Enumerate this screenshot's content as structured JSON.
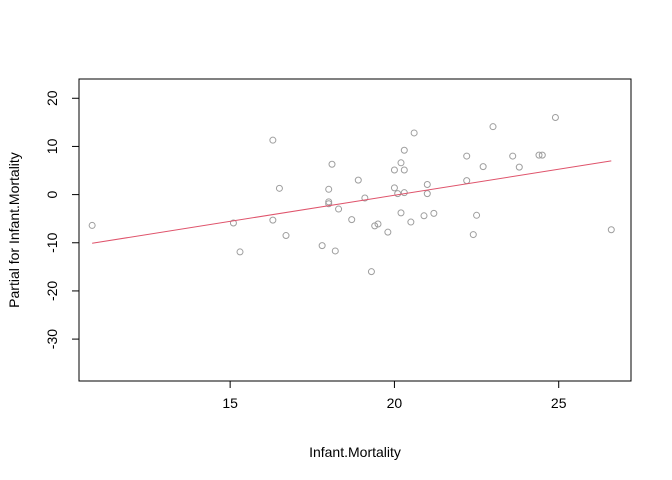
{
  "chart_data": {
    "type": "scatter",
    "title": "",
    "xlabel": "Infant.Mortality",
    "ylabel": "Partial for Infant.Mortality",
    "xlim": [
      10.4,
      27.2
    ],
    "ylim": [
      -38.7,
      24.0
    ],
    "xticks": [
      15,
      20,
      25
    ],
    "yticks": [
      -30,
      -20,
      -10,
      0,
      10,
      20
    ],
    "grid": false,
    "legend": "none",
    "point_color": "#9e9e9e",
    "line_color": "#df536b",
    "points": [
      {
        "x": 10.8,
        "y": -6.4
      },
      {
        "x": 15.1,
        "y": -5.9
      },
      {
        "x": 15.3,
        "y": -11.9
      },
      {
        "x": 16.3,
        "y": 11.3
      },
      {
        "x": 16.3,
        "y": -5.3
      },
      {
        "x": 16.5,
        "y": 1.3
      },
      {
        "x": 16.7,
        "y": -8.5
      },
      {
        "x": 17.8,
        "y": -10.6
      },
      {
        "x": 18.0,
        "y": 1.1
      },
      {
        "x": 18.0,
        "y": -1.5
      },
      {
        "x": 18.0,
        "y": -1.9
      },
      {
        "x": 18.1,
        "y": 6.3
      },
      {
        "x": 18.2,
        "y": -11.7
      },
      {
        "x": 18.3,
        "y": -3.0
      },
      {
        "x": 18.7,
        "y": -5.2
      },
      {
        "x": 18.9,
        "y": 3.0
      },
      {
        "x": 19.1,
        "y": -0.7
      },
      {
        "x": 19.3,
        "y": -16.0
      },
      {
        "x": 19.4,
        "y": -6.5
      },
      {
        "x": 19.5,
        "y": -6.1
      },
      {
        "x": 19.8,
        "y": -7.8
      },
      {
        "x": 20.0,
        "y": 5.1
      },
      {
        "x": 20.0,
        "y": 1.4
      },
      {
        "x": 20.1,
        "y": 0.2
      },
      {
        "x": 20.2,
        "y": 6.6
      },
      {
        "x": 20.2,
        "y": -3.8
      },
      {
        "x": 20.3,
        "y": 0.4
      },
      {
        "x": 20.3,
        "y": 5.1
      },
      {
        "x": 20.3,
        "y": 9.2
      },
      {
        "x": 20.5,
        "y": -5.7
      },
      {
        "x": 20.6,
        "y": 12.8
      },
      {
        "x": 20.9,
        "y": -4.4
      },
      {
        "x": 21.0,
        "y": 2.1
      },
      {
        "x": 21.0,
        "y": 0.2
      },
      {
        "x": 21.2,
        "y": -3.9
      },
      {
        "x": 22.2,
        "y": 8.0
      },
      {
        "x": 22.2,
        "y": 2.9
      },
      {
        "x": 22.4,
        "y": -8.3
      },
      {
        "x": 22.5,
        "y": -4.3
      },
      {
        "x": 22.7,
        "y": 5.8
      },
      {
        "x": 23.0,
        "y": 14.1
      },
      {
        "x": 23.6,
        "y": 8.0
      },
      {
        "x": 23.8,
        "y": 5.7
      },
      {
        "x": 24.4,
        "y": 8.2
      },
      {
        "x": 24.5,
        "y": 8.2
      },
      {
        "x": 24.9,
        "y": 16.0
      },
      {
        "x": 26.6,
        "y": -7.3
      }
    ],
    "fit_line": {
      "x": [
        10.8,
        26.6
      ],
      "y": [
        -10.1,
        7.0
      ]
    }
  }
}
